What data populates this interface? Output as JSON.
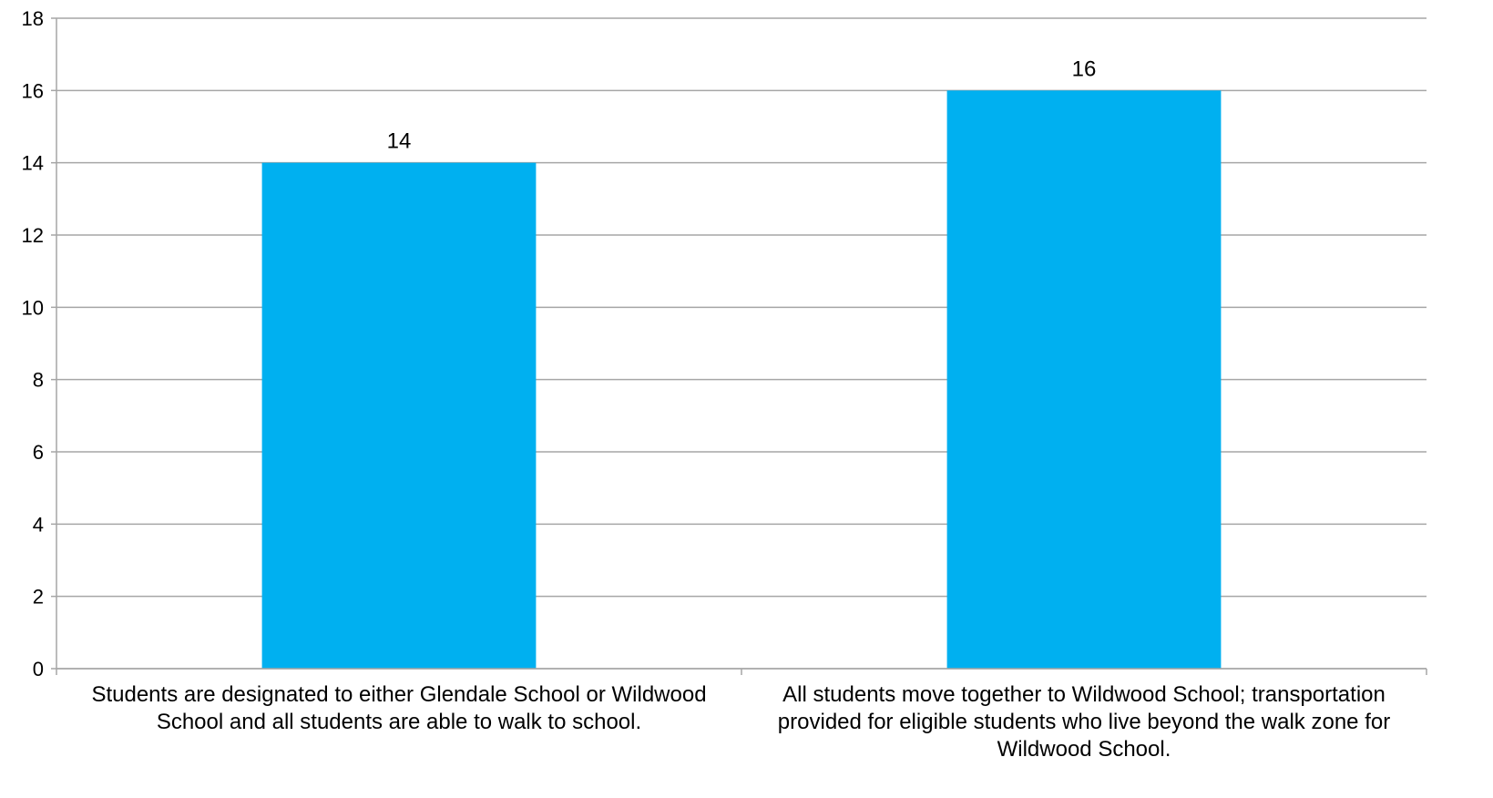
{
  "chart_data": {
    "type": "bar",
    "title": "",
    "xlabel": "",
    "ylabel": "",
    "categories": [
      "Students are designated to either Glendale School or Wildwood\nSchool and all students are able to walk to school.",
      "All students move together to Wildwood School; transportation\nprovided for eligible students who live beyond the walk zone for\nWildwood School."
    ],
    "values": [
      14,
      16
    ],
    "value_labels": [
      "14",
      "16"
    ],
    "ylim": [
      0,
      18
    ],
    "yticks": [
      0,
      2,
      4,
      6,
      8,
      10,
      12,
      14,
      16,
      18
    ],
    "ytick_labels": [
      "0",
      "2",
      "4",
      "6",
      "8",
      "10",
      "12",
      "14",
      "16",
      "18"
    ],
    "grid": true,
    "legend": "none",
    "colors": {
      "bar": "#00B0F0",
      "grid": "#A6A6A6",
      "axis": "#A6A6A6",
      "text": "#000000"
    }
  }
}
